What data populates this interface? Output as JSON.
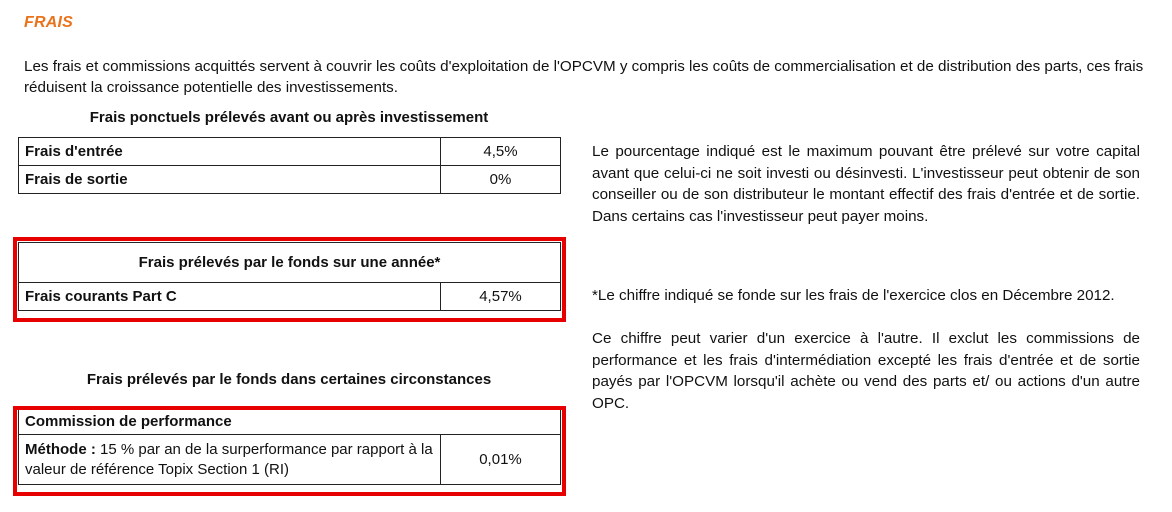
{
  "section": {
    "title": "FRAIS",
    "title_color": "#e8731a",
    "intro": "Les frais et commissions acquittés servent à couvrir les coûts d'exploitation de l'OPCVM y compris les coûts de commercialisation et de distribution des parts, ces frais réduisent la croissance potentielle des investissements."
  },
  "ponctuels": {
    "caption": "Frais ponctuels prélevés avant ou après investissement",
    "rows": [
      {
        "label": "Frais d'entrée",
        "value": "4,5%"
      },
      {
        "label": "Frais de sortie",
        "value": "0%"
      }
    ],
    "note": "Le pourcentage indiqué est le maximum pouvant être prélevé sur votre capital avant que celui-ci ne soit investi ou désinvesti. L'investisseur peut obtenir de son conseiller ou de son distributeur le montant effectif des frais d'entrée et de sortie. Dans certains cas l'investisseur peut payer moins."
  },
  "annuels": {
    "caption": "Frais prélevés par le fonds sur une année*",
    "row": {
      "label": "Frais courants Part C",
      "value": "4,57%"
    },
    "note_1": "*Le chiffre indiqué se fonde sur les frais de l'exercice clos en Décembre 2012.",
    "note_2": "Ce chiffre peut varier d'un exercice à l'autre. Il exclut les commissions de performance et les frais d'intermédiation excepté les frais d'entrée et de sortie payés par l'OPCVM lorsqu'il achète ou vend des parts et/ ou actions d'un autre OPC."
  },
  "circonstances": {
    "caption": "Frais prélevés par le fonds dans certaines circonstances",
    "heading": "Commission de performance",
    "method_label": "Méthode :",
    "method_text": "15 % par an de la surperformance par rapport à la valeur de référence Topix Section 1 (RI)",
    "value": "0,01%"
  },
  "highlight_color": "#e60000"
}
